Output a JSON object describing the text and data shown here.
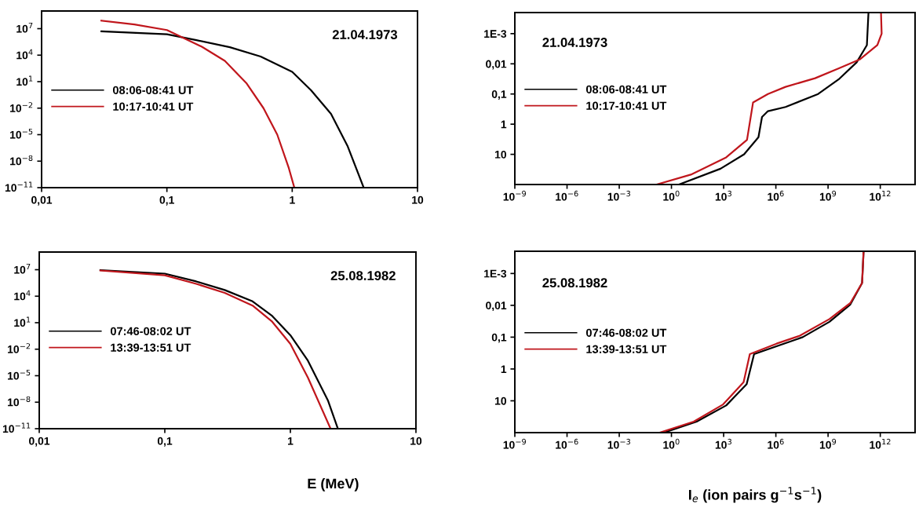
{
  "chart_data": [
    {
      "type": "line",
      "log": "xy",
      "xlim": [
        0.01,
        10
      ],
      "ylim": [
        1e-11,
        1000000000.0
      ],
      "xticks": [
        {
          "value": 0.01,
          "label": "0,01"
        },
        {
          "value": 0.1,
          "label": "0,1"
        },
        1,
        10
      ],
      "yticks": [
        {
          "value": 1e-11,
          "label": "10$^{−11}$"
        },
        {
          "value": 1e-08,
          "label": "10$^{−8}$"
        },
        {
          "value": 1e-05,
          "label": "10$^{−5}$"
        },
        {
          "value": 0.01,
          "label": "10$^{−2}$"
        },
        {
          "value": 10,
          "label": "10$^{1}$"
        },
        {
          "value": 10000,
          "label": "10$^{4}$"
        },
        {
          "value": 10000000.0,
          "label": "10$^{7}$"
        }
      ],
      "legend": "left",
      "annotations": [
        "21.04.1973"
      ],
      "series": [
        {
          "name": "08:06-08:41 UT",
          "color": "#000000",
          "x": [
            0.03,
            0.1,
            0.172,
            0.318,
            0.56,
            1,
            1.41,
            2.04,
            2.76,
            3.72
          ],
          "values": [
            5000000.0,
            2300000.0,
            500000.0,
            80000.0,
            7000.0,
            130,
            1.1,
            0.0023,
            5.5e-07,
            1e-11
          ]
        },
        {
          "name": "10:17-10:41 UT",
          "color": "#c0161c",
          "x": [
            0.03,
            0.055,
            0.1,
            0.19,
            0.29,
            0.43,
            0.59,
            0.76,
            0.94,
            1.04
          ],
          "values": [
            80000000.0,
            30000000.0,
            7000000.0,
            90000.0,
            2300.0,
            7,
            0.01,
            1e-05,
            1.6e-09,
            1e-11
          ]
        }
      ]
    },
    {
      "type": "line",
      "log": "xy",
      "xlim": [
        1e-09,
        100000000000000.0
      ],
      "ylim": [
        100,
        0.0002
      ],
      "xticks": [
        {
          "value": 1e-09,
          "label": "10$^{−9}$"
        },
        {
          "value": 1e-06,
          "label": "10$^{−6}$"
        },
        {
          "value": 0.001,
          "label": "10$^{−3}$"
        },
        {
          "value": 1,
          "label": "10$^{0}$"
        },
        {
          "value": 1000,
          "label": "10$^{3}$"
        },
        {
          "value": 1000000.0,
          "label": "10$^{6}$"
        },
        {
          "value": 1000000000.0,
          "label": "10$^{9}$"
        },
        {
          "value": 1000000000000.0,
          "label": "10$^{12}$"
        }
      ],
      "yticks": [
        {
          "value": 0.001,
          "label": "1E-3"
        },
        {
          "value": 0.01,
          "label": "0,01"
        },
        {
          "value": 0.1,
          "label": "0,1"
        },
        1,
        10
      ],
      "legend": "left",
      "annotations": [
        "21.04.1973"
      ],
      "series": [
        {
          "name": "08:06-08:41 UT",
          "color": "#000000",
          "x": [
            2.7,
            660,
            15000.0,
            100000.0,
            160000.0,
            350000.0,
            3600000.0,
            270000000.0,
            4000000000.0,
            44000000000.0,
            170000000000.0,
            210000000000.0
          ],
          "values": [
            100,
            30,
            10,
            2.7,
            0.58,
            0.37,
            0.27,
            0.1,
            0.033,
            0.0089,
            0.0024,
            0.0002
          ]
        },
        {
          "name": "10:17-10:41 UT",
          "color": "#c0161c",
          "x": [
            0.14,
            13,
            1400.0,
            22000.0,
            49000.0,
            350000.0,
            3600000.0,
            180000000.0,
            4200000000.0,
            65000000000.0,
            680000000000.0,
            1200000000000.0,
            1100000000000.0
          ],
          "values": [
            100,
            47,
            12.6,
            3.3,
            0.19,
            0.1,
            0.058,
            0.03,
            0.014,
            0.0072,
            0.0024,
            0.001,
            0.0002
          ]
        }
      ]
    },
    {
      "type": "line",
      "log": "xy",
      "xlim": [
        0.01,
        10
      ],
      "ylim": [
        1e-11,
        1000000000.0
      ],
      "xticks": [
        {
          "value": 0.01,
          "label": "0,01"
        },
        {
          "value": 0.1,
          "label": "0,1"
        },
        1,
        10
      ],
      "yticks": [
        {
          "value": 1e-11,
          "label": "10$^{−11}$"
        },
        {
          "value": 1e-08,
          "label": "10$^{−8}$"
        },
        {
          "value": 1e-05,
          "label": "10$^{−5}$"
        },
        {
          "value": 0.01,
          "label": "10$^{−2}$"
        },
        {
          "value": 10,
          "label": "10$^{1}$"
        },
        {
          "value": 10000,
          "label": "10$^{4}$"
        },
        {
          "value": 10000000.0,
          "label": "10$^{7}$"
        }
      ],
      "xlabel": "E (MeV)",
      "legend": "left",
      "annotations": [
        "25.08.1982"
      ],
      "series": [
        {
          "name": "07:46-08:02 UT",
          "color": "#000000",
          "x": [
            0.0307,
            0.1,
            0.178,
            0.3,
            0.5,
            0.71,
            1,
            1.38,
            1.99,
            2.39
          ],
          "values": [
            9000000.0,
            3600000.0,
            470000.0,
            50000.0,
            2600.0,
            66,
            0.38,
            0.0005,
            1.6e-08,
            1e-11
          ]
        },
        {
          "name": "13:39-13:51 UT",
          "color": "#c0161c",
          "x": [
            0.0307,
            0.1,
            0.178,
            0.3,
            0.5,
            0.71,
            1,
            1.38,
            2.09
          ],
          "values": [
            8000000.0,
            2300000.0,
            250000.0,
            24000.0,
            870,
            15,
            0.04,
            6e-06,
            1e-11
          ]
        }
      ]
    },
    {
      "type": "line",
      "log": "xy",
      "xlim": [
        1e-09,
        100000000000000.0
      ],
      "ylim": [
        100,
        0.0002
      ],
      "xticks": [
        {
          "value": 1e-09,
          "label": "10$^{−9}$"
        },
        {
          "value": 1e-06,
          "label": "10$^{−6}$"
        },
        {
          "value": 0.001,
          "label": "10$^{−3}$"
        },
        {
          "value": 1,
          "label": "10$^{0}$"
        },
        {
          "value": 1000,
          "label": "10$^{3}$"
        },
        {
          "value": 1000000.0,
          "label": "10$^{6}$"
        },
        {
          "value": 1000000000.0,
          "label": "10$^{9}$"
        },
        {
          "value": 1000000000000.0,
          "label": "10$^{12}$"
        }
      ],
      "yticks": [
        {
          "value": 0.001,
          "label": "1E-3"
        },
        {
          "value": 0.01,
          "label": "0,01"
        },
        {
          "value": 0.1,
          "label": "0,1"
        },
        1,
        10
      ],
      "xlabel": "I$_{e}$ (ion pairs g$^{−1}$s$^{−1}$)",
      "legend": "left",
      "annotations": [
        "25.08.1982"
      ],
      "series": [
        {
          "name": "07:46-08:02 UT",
          "color": "#000000",
          "x": [
            0.37,
            28,
            1400.0,
            21000.0,
            56000.0,
            1600000.0,
            35000000.0,
            1200000000.0,
            19000000000.0,
            90000000000.0,
            110000000000.0
          ],
          "values": [
            100,
            45,
            14,
            3,
            0.34,
            0.18,
            0.1,
            0.033,
            0.0094,
            0.002,
            0.0002
          ]
        },
        {
          "name": "13:39-13:51 UT",
          "color": "#c0161c",
          "x": [
            0.21,
            19,
            930,
            14000.0,
            32000.0,
            1100000.0,
            24000000.0,
            1200000000.0,
            19000000000.0,
            90000000000.0,
            110000000000.0
          ],
          "values": [
            100,
            45,
            13,
            2.6,
            0.34,
            0.16,
            0.09,
            0.027,
            0.0085,
            0.002,
            0.0002
          ]
        }
      ]
    }
  ]
}
